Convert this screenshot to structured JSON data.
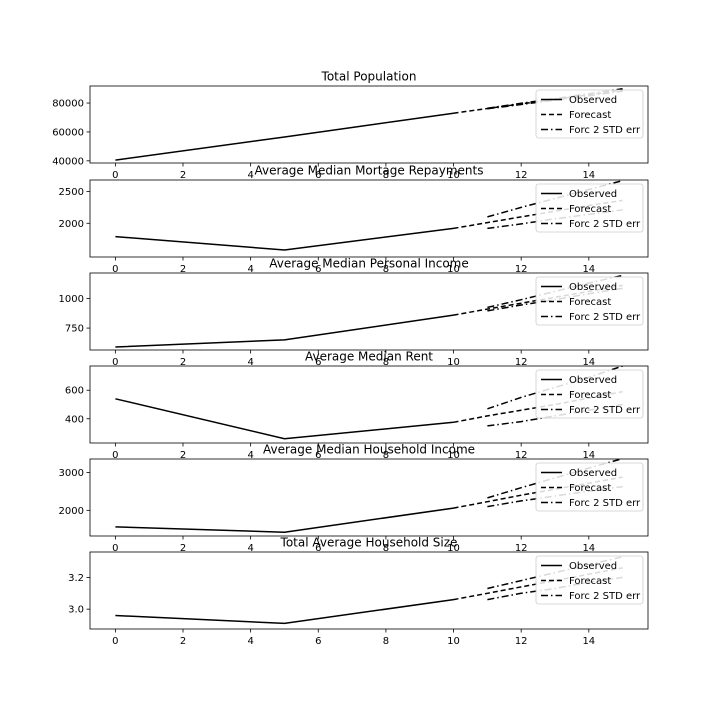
{
  "chart_data": [
    {
      "type": "line",
      "title": "Total Population",
      "xlabel": "",
      "ylabel": "",
      "xlim": [
        -0.75,
        15.75
      ],
      "ylim": [
        38500,
        91800
      ],
      "xticks": [
        0,
        2,
        4,
        6,
        8,
        10,
        12,
        14
      ],
      "yticks": [
        40000,
        60000,
        80000
      ],
      "legend_position": "top-right",
      "legend": [
        "Observed",
        "Forecast",
        "Forc 2 STD err"
      ],
      "series": [
        {
          "name": "Observed",
          "style": "solid",
          "x": [
            0,
            5,
            10
          ],
          "y": [
            40500,
            56500,
            73000
          ]
        },
        {
          "name": "Forecast",
          "style": "dashed",
          "x": [
            10,
            11,
            12,
            13,
            14,
            15
          ],
          "y": [
            73000,
            76200,
            79400,
            82600,
            85800,
            89000
          ]
        },
        {
          "name": "Forc 2 STD err",
          "style": "dashdot",
          "x": [
            11,
            12,
            13,
            14,
            15
          ],
          "y": [
            76400,
            79800,
            83100,
            86500,
            89900
          ]
        },
        {
          "name": "Forc 2 STD err",
          "style": "dashdot",
          "x": [
            11,
            12,
            13,
            14,
            15
          ],
          "y": [
            76000,
            79000,
            82100,
            85100,
            88100
          ]
        }
      ]
    },
    {
      "type": "line",
      "title": "Average Median Mortage Repayments",
      "xlabel": "",
      "ylabel": "",
      "xlim": [
        -0.75,
        15.75
      ],
      "ylim": [
        1470,
        2680
      ],
      "xticks": [
        0,
        2,
        4,
        6,
        8,
        10,
        12,
        14
      ],
      "yticks": [
        2000,
        2500
      ],
      "legend_position": "top-right",
      "legend": [
        "Observed",
        "Forecast",
        "Forc 2 STD err"
      ],
      "series": [
        {
          "name": "Observed",
          "style": "solid",
          "x": [
            0,
            5,
            10
          ],
          "y": [
            1790,
            1580,
            1920
          ]
        },
        {
          "name": "Forecast",
          "style": "dashed",
          "x": [
            10,
            11,
            12,
            13,
            14,
            15
          ],
          "y": [
            1920,
            2010,
            2100,
            2190,
            2280,
            2360
          ]
        },
        {
          "name": "Forc 2 STD err",
          "style": "dashdot",
          "x": [
            11,
            12,
            13,
            14,
            15
          ],
          "y": [
            2100,
            2250,
            2390,
            2530,
            2670
          ]
        },
        {
          "name": "Forc 2 STD err",
          "style": "dashdot",
          "x": [
            11,
            12,
            13,
            14,
            15
          ],
          "y": [
            1920,
            1990,
            2070,
            2140,
            2210
          ]
        }
      ]
    },
    {
      "type": "line",
      "title": "Average Median Personal Income",
      "xlabel": "",
      "ylabel": "",
      "xlim": [
        -0.75,
        15.75
      ],
      "ylim": [
        565,
        1215
      ],
      "xticks": [
        0,
        2,
        4,
        6,
        8,
        10,
        12,
        14
      ],
      "yticks": [
        750,
        1000
      ],
      "legend_position": "top-right",
      "legend": [
        "Observed",
        "Forecast",
        "Forc 2 STD err"
      ],
      "series": [
        {
          "name": "Observed",
          "style": "solid",
          "x": [
            0,
            5,
            10
          ],
          "y": [
            590,
            650,
            860
          ]
        },
        {
          "name": "Forecast",
          "style": "dashed",
          "x": [
            10,
            11,
            12,
            13,
            14,
            15
          ],
          "y": [
            860,
            910,
            960,
            1010,
            1060,
            1110
          ]
        },
        {
          "name": "Forc 2 STD err",
          "style": "dashdot",
          "x": [
            11,
            12,
            13,
            14,
            15
          ],
          "y": [
            925,
            990,
            1060,
            1130,
            1195
          ]
        },
        {
          "name": "Forc 2 STD err",
          "style": "dashdot",
          "x": [
            11,
            12,
            13,
            14,
            15
          ],
          "y": [
            895,
            945,
            990,
            1040,
            1085
          ]
        }
      ]
    },
    {
      "type": "line",
      "title": "Average Median Rent",
      "xlabel": "",
      "ylabel": "",
      "xlim": [
        -0.75,
        15.75
      ],
      "ylim": [
        230,
        770
      ],
      "xticks": [
        0,
        2,
        4,
        6,
        8,
        10,
        12,
        14
      ],
      "yticks": [
        400,
        600
      ],
      "legend_position": "top-right",
      "legend": [
        "Observed",
        "Forecast",
        "Forc 2 STD err"
      ],
      "series": [
        {
          "name": "Observed",
          "style": "solid",
          "x": [
            0,
            5,
            10
          ],
          "y": [
            540,
            260,
            375
          ]
        },
        {
          "name": "Forecast",
          "style": "dashed",
          "x": [
            10,
            11,
            12,
            13,
            14,
            15
          ],
          "y": [
            375,
            420,
            460,
            500,
            545,
            590
          ]
        },
        {
          "name": "Forc 2 STD err",
          "style": "dashdot",
          "x": [
            11,
            12,
            13,
            14,
            15
          ],
          "y": [
            470,
            550,
            620,
            690,
            770
          ]
        },
        {
          "name": "Forc 2 STD err",
          "style": "dashdot",
          "x": [
            11,
            12,
            13,
            14,
            15
          ],
          "y": [
            350,
            380,
            420,
            460,
            500
          ]
        }
      ]
    },
    {
      "type": "line",
      "title": "Average Median Household Income",
      "xlabel": "",
      "ylabel": "",
      "xlim": [
        -0.75,
        15.75
      ],
      "ylim": [
        1320,
        3360
      ],
      "xticks": [
        0,
        2,
        4,
        6,
        8,
        10,
        12,
        14
      ],
      "yticks": [
        2000,
        3000
      ],
      "legend_position": "top-right",
      "legend": [
        "Observed",
        "Forecast",
        "Forc 2 STD err"
      ],
      "series": [
        {
          "name": "Observed",
          "style": "solid",
          "x": [
            0,
            5,
            10
          ],
          "y": [
            1560,
            1420,
            2060
          ]
        },
        {
          "name": "Forecast",
          "style": "dashed",
          "x": [
            10,
            11,
            12,
            13,
            14,
            15
          ],
          "y": [
            2060,
            2230,
            2400,
            2560,
            2720,
            2880
          ]
        },
        {
          "name": "Forc 2 STD err",
          "style": "dashdot",
          "x": [
            11,
            12,
            13,
            14,
            15
          ],
          "y": [
            2330,
            2600,
            2860,
            3120,
            3370
          ]
        },
        {
          "name": "Forc 2 STD err",
          "style": "dashdot",
          "x": [
            11,
            12,
            13,
            14,
            15
          ],
          "y": [
            2100,
            2250,
            2380,
            2510,
            2630
          ]
        }
      ]
    },
    {
      "type": "line",
      "title": "Total Average Household Size",
      "xlabel": "",
      "ylabel": "",
      "xlim": [
        -0.75,
        15.75
      ],
      "ylim": [
        2.875,
        3.36
      ],
      "xticks": [
        0,
        2,
        4,
        6,
        8,
        10,
        12,
        14
      ],
      "yticks": [
        3.0,
        3.2
      ],
      "legend_position": "top-right",
      "legend": [
        "Observed",
        "Forecast",
        "Forc 2 STD err"
      ],
      "series": [
        {
          "name": "Observed",
          "style": "solid",
          "x": [
            0,
            5,
            10
          ],
          "y": [
            2.96,
            2.91,
            3.06
          ]
        },
        {
          "name": "Forecast",
          "style": "dashed",
          "x": [
            10,
            11,
            12,
            13,
            14,
            15
          ],
          "y": [
            3.06,
            3.1,
            3.14,
            3.18,
            3.22,
            3.26
          ]
        },
        {
          "name": "Forc 2 STD err",
          "style": "dashdot",
          "x": [
            11,
            12,
            13,
            14,
            15
          ],
          "y": [
            3.13,
            3.18,
            3.23,
            3.28,
            3.33
          ]
        },
        {
          "name": "Forc 2 STD err",
          "style": "dashdot",
          "x": [
            11,
            12,
            13,
            14,
            15
          ],
          "y": [
            3.06,
            3.1,
            3.13,
            3.17,
            3.2
          ]
        }
      ]
    }
  ]
}
